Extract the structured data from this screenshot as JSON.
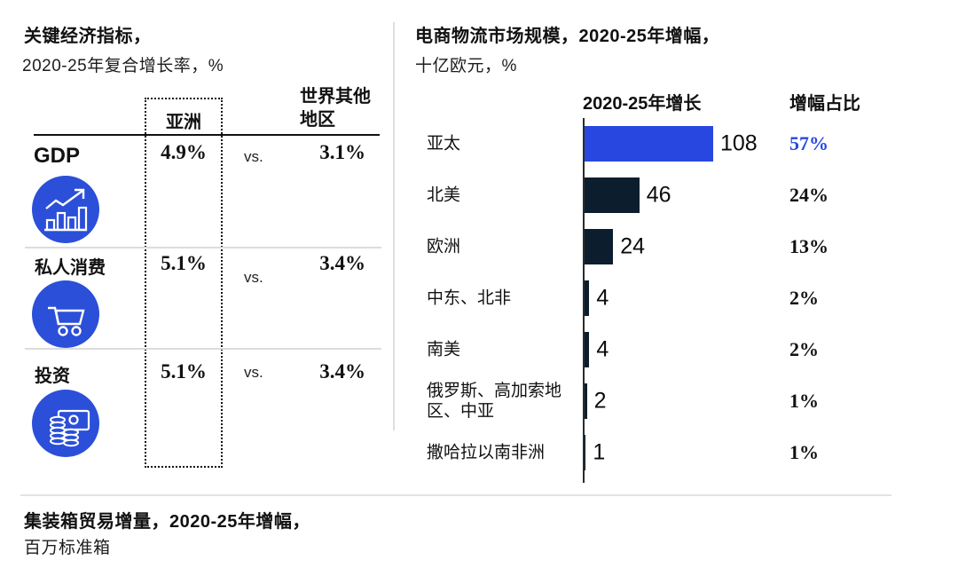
{
  "colors": {
    "bar_blue": "#2847e0",
    "bar_navy": "#0c1e2e",
    "icon_blue": "#2b4fd8",
    "highlight_text": "#2847e0",
    "text_dark": "#111111",
    "divider_gray": "#dcdcdc"
  },
  "left_panel": {
    "title": "关键经济指标，",
    "subtitle": "2020-25年复合增长率，%",
    "columns": {
      "asia": "亚洲",
      "world_line1": "世界其他",
      "world_line2": "地区"
    },
    "vs": "vs.",
    "rows": [
      {
        "label": "GDP",
        "asia_value": "4.9%",
        "world_value": "3.1%",
        "icon": "growth-chart-icon"
      },
      {
        "label": "私人消费",
        "asia_value": "5.1%",
        "world_value": "3.4%",
        "icon": "shopping-cart-icon"
      },
      {
        "label": "投资",
        "asia_value": "5.1%",
        "world_value": "3.4%",
        "icon": "coins-banknote-icon"
      }
    ]
  },
  "right_panel": {
    "title": "电商物流市场规模，2020-25年增幅，",
    "subtitle": "十亿欧元，%",
    "col_growth": "2020-25年增长",
    "col_share": "增幅占比",
    "rows": [
      {
        "label": "亚太",
        "value": 108,
        "share": "57%",
        "highlight": true
      },
      {
        "label": "北美",
        "value": 46,
        "share": "24%"
      },
      {
        "label": "欧洲",
        "value": 24,
        "share": "13%"
      },
      {
        "label": "中东、北非",
        "value": 4,
        "share": "2%"
      },
      {
        "label": "南美",
        "value": 4,
        "share": "2%"
      },
      {
        "label": "俄罗斯、高加索地区、中亚",
        "value": 2,
        "share": "1%"
      },
      {
        "label": "撒哈拉以南非洲",
        "value": 1,
        "share": "1%"
      }
    ]
  },
  "bottom_panel": {
    "title": "集装箱贸易增量，2020-25年增幅，",
    "subtitle": "百万标准箱"
  },
  "chart_data": [
    {
      "type": "bar",
      "orientation": "horizontal",
      "title": "电商物流市场规模，2020-25年增幅，",
      "subtitle": "十亿欧元，%",
      "categories": [
        "亚太",
        "北美",
        "欧洲",
        "中东、北非",
        "南美",
        "俄罗斯、高加索地区、中亚",
        "撒哈拉以南非洲"
      ],
      "series": [
        {
          "name": "2020-25年增长",
          "values": [
            108,
            46,
            24,
            4,
            4,
            2,
            1
          ]
        },
        {
          "name": "增幅占比",
          "values": [
            "57%",
            "24%",
            "13%",
            "2%",
            "2%",
            "1%",
            "1%"
          ]
        }
      ],
      "xlim": [
        0,
        120
      ],
      "grid": false,
      "legend_position": "column-headers",
      "highlight_category": "亚太"
    },
    {
      "type": "table",
      "title": "关键经济指标，",
      "subtitle": "2020-25年复合增长率，%",
      "columns": [
        "亚洲",
        "世界其他地区"
      ],
      "rows": [
        {
          "label": "GDP",
          "asia": "4.9%",
          "rest_of_world": "3.1%"
        },
        {
          "label": "私人消费",
          "asia": "5.1%",
          "rest_of_world": "3.4%"
        },
        {
          "label": "投资",
          "asia": "5.1%",
          "rest_of_world": "3.4%"
        }
      ]
    }
  ]
}
